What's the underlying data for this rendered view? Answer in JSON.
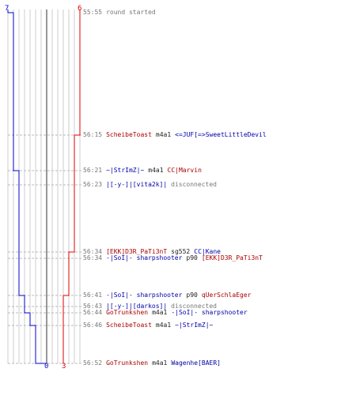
{
  "scores": {
    "blue_start": "7",
    "red_start": "6",
    "blue_end": "0",
    "red_end": "3"
  },
  "colors": {
    "blue_team": "#0000cc",
    "red_team": "#dd0000",
    "grid": "#cccccc",
    "text_gray": "#777777"
  },
  "events": [
    {
      "time": "55:55",
      "parts": [
        {
          "text": "round started",
          "tone": "gray"
        }
      ]
    },
    {
      "time": "56:15",
      "parts": [
        {
          "text": "ScheibeToast",
          "tone": "red"
        },
        {
          "text": "m4a1",
          "tone": "black"
        },
        {
          "text": "<=JUF[=>SweetLittleDevil",
          "tone": "blue"
        }
      ]
    },
    {
      "time": "56:21",
      "parts": [
        {
          "text": "~|StrImZ|~",
          "tone": "blue"
        },
        {
          "text": "m4a1",
          "tone": "black"
        },
        {
          "text": "CC|Marvin",
          "tone": "red"
        }
      ]
    },
    {
      "time": "56:23",
      "parts": [
        {
          "text": "|[-y-]|[vita2k]|",
          "tone": "blue"
        },
        {
          "text": "disconnected",
          "tone": "gray"
        }
      ]
    },
    {
      "time": "56:34",
      "parts": [
        {
          "text": "[EKK]D3R_PaTi3nT",
          "tone": "red"
        },
        {
          "text": "sg552",
          "tone": "black"
        },
        {
          "text": "CC|Kane",
          "tone": "blue"
        }
      ]
    },
    {
      "time": "56:34",
      "parts": [
        {
          "text": "-|SoI|- sharpshooter",
          "tone": "blue"
        },
        {
          "text": "p90",
          "tone": "black"
        },
        {
          "text": "[EKK]D3R_PaTi3nT",
          "tone": "red"
        }
      ]
    },
    {
      "time": "56:41",
      "parts": [
        {
          "text": "-|SoI|- sharpshooter",
          "tone": "blue"
        },
        {
          "text": "p90",
          "tone": "black"
        },
        {
          "text": "qUerSchlaEger",
          "tone": "red"
        }
      ]
    },
    {
      "time": "56:43",
      "parts": [
        {
          "text": "|[-y-]|[darkos]|",
          "tone": "blue"
        },
        {
          "text": "disconnected",
          "tone": "gray"
        }
      ]
    },
    {
      "time": "56:44",
      "parts": [
        {
          "text": "GoTrunkshen",
          "tone": "red"
        },
        {
          "text": "m4a1",
          "tone": "black"
        },
        {
          "text": "-|SoI|- sharpshooter",
          "tone": "blue"
        }
      ]
    },
    {
      "time": "56:46",
      "parts": [
        {
          "text": "ScheibeToast",
          "tone": "red"
        },
        {
          "text": "m4a1",
          "tone": "black"
        },
        {
          "text": "~|StrImZ|~",
          "tone": "blue"
        }
      ]
    },
    {
      "time": "56:52",
      "parts": [
        {
          "text": "GoTrunkshen",
          "tone": "red"
        },
        {
          "text": "m4a1",
          "tone": "black"
        },
        {
          "text": "Wagenhe[BAER]",
          "tone": "blue"
        }
      ]
    }
  ],
  "blue_steps": [
    7,
    6,
    6,
    5,
    5,
    5,
    5,
    4,
    4,
    3,
    2,
    0
  ],
  "red_steps": [
    6,
    6,
    5,
    5,
    5,
    4,
    4,
    3,
    3,
    3,
    3,
    3
  ]
}
